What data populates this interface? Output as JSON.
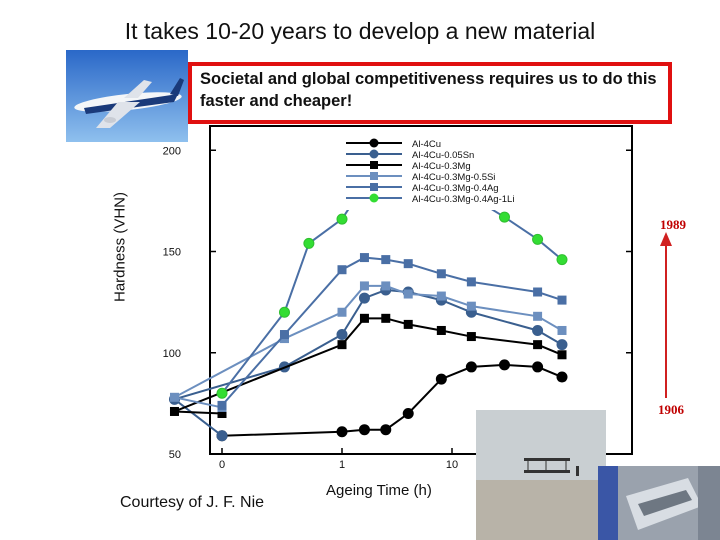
{
  "slide": {
    "title": "It takes 10-20 years to develop a new material",
    "callout": "Societal and global competitiveness requires us to do this faster and cheaper!",
    "credit": "Courtesy of J. F. Nie",
    "year_top": "1989",
    "year_bottom": "1906",
    "colors": {
      "callout_border": "#e01010",
      "year_text": "#c00000",
      "arrow": "#d02020"
    }
  },
  "chart_data": {
    "type": "line",
    "title": "",
    "xlabel": "Ageing Time (h)",
    "ylabel": "Hardness (VHN)",
    "x_ticks": [
      "0",
      "1",
      "10"
    ],
    "y_ticks": [
      200,
      150,
      100,
      50
    ],
    "ylim": [
      50,
      210
    ],
    "x_scale": "log-time (0, 1, 10 h)",
    "grid": false,
    "legend_position": "top-right",
    "x": [
      0,
      0.03,
      0.3,
      0.5,
      1,
      1.6,
      2.5,
      4,
      8,
      15,
      30,
      60,
      100
    ],
    "series": [
      {
        "name": "Al-4Cu",
        "color": "#000000",
        "marker": "circle",
        "values": [
          59,
          null,
          null,
          null,
          61,
          62,
          62,
          70,
          87,
          93,
          94,
          93,
          88
        ]
      },
      {
        "name": "Al-4Cu-0.05Sn",
        "color": "#3a5f8f",
        "marker": "circle",
        "values": [
          59,
          77,
          93,
          null,
          109,
          127,
          131,
          130,
          126,
          120,
          null,
          111,
          104
        ]
      },
      {
        "name": "Al-4Cu-0.3Mg",
        "color": "#000000",
        "marker": "square",
        "values": [
          70,
          71,
          null,
          null,
          104,
          117,
          117,
          114,
          111,
          108,
          null,
          104,
          99
        ]
      },
      {
        "name": "Al-4Cu-0.3Mg-0.5Si",
        "color": "#6c8fbf",
        "marker": "square",
        "values": [
          73,
          78,
          107,
          null,
          120,
          133,
          133,
          129,
          128,
          123,
          null,
          118,
          111
        ]
      },
      {
        "name": "Al-4Cu-0.3Mg-0.4Ag",
        "color": "#4a6fa5",
        "marker": "square",
        "values": [
          74,
          null,
          109,
          null,
          141,
          147,
          146,
          144,
          139,
          135,
          null,
          130,
          126
        ]
      },
      {
        "name": "Al-4Cu-0.3Mg-0.4Ag-1Li",
        "color": "#33dd33",
        "marker": "circle",
        "values": [
          80,
          null,
          120,
          154,
          166,
          183,
          193,
          195,
          187,
          177,
          167,
          156,
          146
        ]
      }
    ],
    "annotations": [
      "1989",
      "1906"
    ]
  }
}
